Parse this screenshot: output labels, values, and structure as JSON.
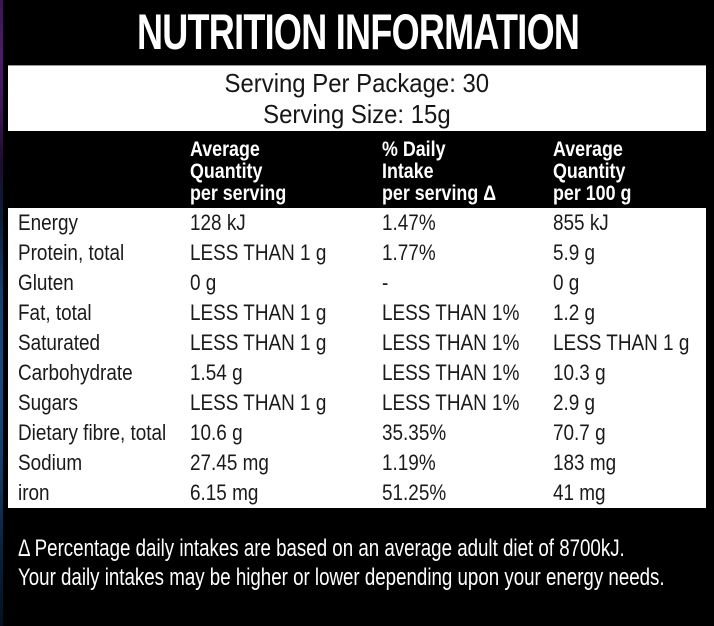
{
  "title": "NUTRITION INFORMATION",
  "serving_info": {
    "per_package": "Serving Per Package: 30",
    "serving_size": "Serving Size: 15g"
  },
  "table": {
    "columns": [
      {
        "lines": [
          "Average",
          "Quantity",
          "per serving"
        ]
      },
      {
        "lines": [
          "% Daily",
          "Intake",
          "per serving Δ"
        ]
      },
      {
        "lines": [
          "Average",
          "Quantity",
          "per 100 g"
        ]
      }
    ],
    "rows": [
      {
        "nutrient": "Energy",
        "per_serving": "128 kJ",
        "daily_intake": "1.47%",
        "per_100g": "855 kJ"
      },
      {
        "nutrient": "Protein, total",
        "per_serving": "LESS THAN 1 g",
        "daily_intake": "1.77%",
        "per_100g": "5.9 g"
      },
      {
        "nutrient": "Gluten",
        "per_serving": "0 g",
        "daily_intake": "-",
        "per_100g": "0 g"
      },
      {
        "nutrient": "Fat, total",
        "per_serving": "LESS THAN 1 g",
        "daily_intake": "LESS THAN 1%",
        "per_100g": "1.2 g"
      },
      {
        "nutrient": "Saturated",
        "per_serving": "LESS THAN 1 g",
        "daily_intake": "LESS THAN 1%",
        "per_100g": "LESS THAN 1 g"
      },
      {
        "nutrient": "Carbohydrate",
        "per_serving": "1.54 g",
        "daily_intake": "LESS THAN 1%",
        "per_100g": "10.3 g"
      },
      {
        "nutrient": "Sugars",
        "per_serving": "LESS THAN 1 g",
        "daily_intake": "LESS THAN 1%",
        "per_100g": "2.9 g"
      },
      {
        "nutrient": "Dietary fibre, total",
        "per_serving": "10.6 g",
        "daily_intake": "35.35%",
        "per_100g": "70.7 g"
      },
      {
        "nutrient": "Sodium",
        "per_serving": "27.45 mg",
        "daily_intake": "1.19%",
        "per_100g": "183 mg"
      },
      {
        "nutrient": "iron",
        "per_serving": "6.15 mg",
        "daily_intake": "51.25%",
        "per_100g": "41 mg"
      }
    ]
  },
  "footnote": {
    "line1": "Δ Percentage daily intakes are based on an average adult diet of 8700kJ.",
    "line2": "Your daily intakes may be higher or lower depending upon your energy needs."
  },
  "colors": {
    "panel_bg": "#000000",
    "box_bg": "#ffffff",
    "edge_purple": "#4a1f63",
    "edge_blue": "#1a4a7c"
  }
}
